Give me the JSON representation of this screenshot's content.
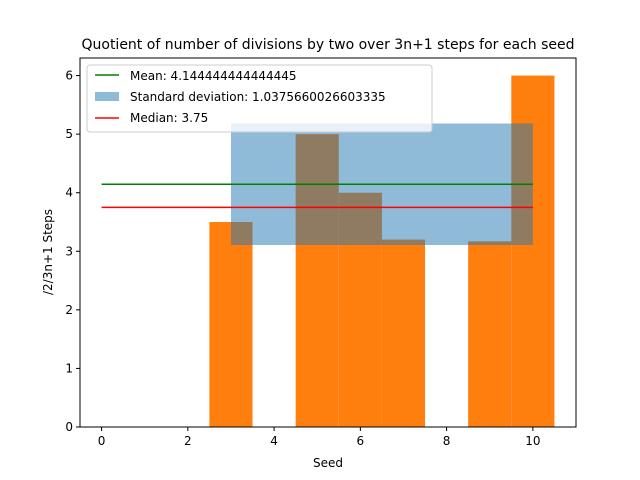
{
  "chart_data": {
    "type": "bar",
    "title": "Quotient of number of divisions by two over 3n+1 steps for each seed",
    "xlabel": "Seed",
    "ylabel": "/2/3n+1 Steps",
    "xlim": [
      -0.5,
      11.0
    ],
    "ylim": [
      0,
      6.3
    ],
    "xticks": [
      0,
      2,
      4,
      6,
      8,
      10
    ],
    "yticks": [
      0,
      1,
      2,
      3,
      4,
      5,
      6
    ],
    "bar_width": 1.0,
    "bar_color": "#ff7f0e",
    "bars": [
      {
        "x": 3,
        "value": 3.5
      },
      {
        "x": 5,
        "value": 5.0
      },
      {
        "x": 6,
        "value": 4.0
      },
      {
        "x": 7,
        "value": 3.2
      },
      {
        "x": 9,
        "value": 3.17
      },
      {
        "x": 10,
        "value": 6.0
      }
    ],
    "mean": {
      "label": "Mean: 4.144444444444445",
      "value": 4.144444444444445,
      "x_range": [
        0,
        10
      ],
      "color": "#008000"
    },
    "median": {
      "label": "Median: 3.75",
      "value": 3.75,
      "x_range": [
        0,
        10
      ],
      "color": "#ff0000"
    },
    "std_band": {
      "label": "Standard deviation: 1.0375660026603335",
      "value": 1.0375660026603335,
      "x_range": [
        3,
        10
      ],
      "color": "#1f77b4",
      "alpha": 0.5
    },
    "legend_position": "upper-left",
    "grid": false
  }
}
